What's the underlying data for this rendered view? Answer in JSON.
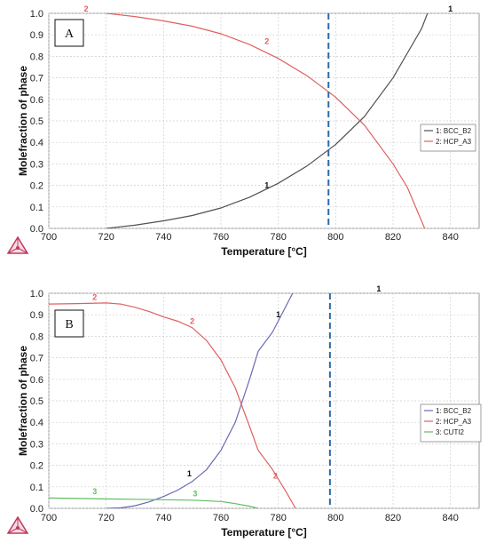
{
  "chart_data": [
    {
      "type": "line",
      "panel_label": "A",
      "xlabel": "Temperature [°C]",
      "ylabel": "Molefraction of phase",
      "xlim": [
        700,
        850
      ],
      "ylim": [
        0,
        1
      ],
      "x_ticks": [
        700,
        720,
        740,
        760,
        780,
        800,
        820,
        840
      ],
      "y_ticks": [
        0.0,
        0.1,
        0.2,
        0.3,
        0.4,
        0.5,
        0.6,
        0.7,
        0.8,
        0.9,
        1.0
      ],
      "grid": true,
      "legend_position": "right",
      "dashed_line_x": 797.5,
      "series": [
        {
          "name": "1: BCC_B2",
          "tag": "1",
          "color": "#505050",
          "points": [
            [
              720,
              0.0
            ],
            [
              730,
              0.015
            ],
            [
              740,
              0.035
            ],
            [
              750,
              0.06
            ],
            [
              760,
              0.095
            ],
            [
              770,
              0.145
            ],
            [
              780,
              0.21
            ],
            [
              790,
              0.29
            ],
            [
              800,
              0.39
            ],
            [
              810,
              0.52
            ],
            [
              820,
              0.7
            ],
            [
              830,
              0.93
            ],
            [
              832,
              1.0
            ]
          ],
          "label_points": [
            [
              776,
              0.18
            ],
            [
              840,
              1.0
            ]
          ]
        },
        {
          "name": "2: HCP_A3",
          "tag": "2",
          "color": "#e06060",
          "points": [
            [
              720,
              1.0
            ],
            [
              730,
              0.985
            ],
            [
              740,
              0.965
            ],
            [
              750,
              0.94
            ],
            [
              760,
              0.905
            ],
            [
              770,
              0.855
            ],
            [
              780,
              0.79
            ],
            [
              790,
              0.71
            ],
            [
              800,
              0.61
            ],
            [
              810,
              0.48
            ],
            [
              820,
              0.3
            ],
            [
              825,
              0.19
            ],
            [
              831,
              0.0
            ]
          ],
          "label_points": [
            [
              713,
              1.0
            ],
            [
              776,
              0.85
            ]
          ]
        }
      ]
    },
    {
      "type": "line",
      "panel_label": "B",
      "xlabel": "Temperature [°C]",
      "ylabel": "Molefraction of phase",
      "xlim": [
        700,
        850
      ],
      "ylim": [
        0,
        1
      ],
      "x_ticks": [
        700,
        720,
        740,
        760,
        780,
        800,
        820,
        840
      ],
      "y_ticks": [
        0.0,
        0.1,
        0.2,
        0.3,
        0.4,
        0.5,
        0.6,
        0.7,
        0.8,
        0.9,
        1.0
      ],
      "grid": true,
      "legend_position": "right",
      "dashed_line_x": 798,
      "series": [
        {
          "name": "1: BCC_B2",
          "tag": "1",
          "color": "#6a6ab4",
          "points": [
            [
              720,
              0.0
            ],
            [
              725,
              0.002
            ],
            [
              730,
              0.012
            ],
            [
              735,
              0.03
            ],
            [
              740,
              0.055
            ],
            [
              745,
              0.085
            ],
            [
              750,
              0.125
            ],
            [
              755,
              0.18
            ],
            [
              760,
              0.27
            ],
            [
              765,
              0.4
            ],
            [
              770,
              0.6
            ],
            [
              773,
              0.73
            ],
            [
              778,
              0.82
            ],
            [
              785,
              1.0
            ]
          ],
          "label_points": [
            [
              749,
              0.14
            ],
            [
              780,
              0.88
            ],
            [
              815,
              1.0
            ]
          ]
        },
        {
          "name": "2: HCP_A3",
          "tag": "2",
          "color": "#e06060",
          "points": [
            [
              700,
              0.95
            ],
            [
              710,
              0.952
            ],
            [
              720,
              0.955
            ],
            [
              725,
              0.95
            ],
            [
              730,
              0.935
            ],
            [
              735,
              0.915
            ],
            [
              740,
              0.89
            ],
            [
              745,
              0.87
            ],
            [
              750,
              0.84
            ],
            [
              755,
              0.78
            ],
            [
              760,
              0.69
            ],
            [
              765,
              0.56
            ],
            [
              770,
              0.38
            ],
            [
              773,
              0.27
            ],
            [
              778,
              0.18
            ],
            [
              783,
              0.07
            ],
            [
              786,
              0.0
            ]
          ],
          "label_points": [
            [
              716,
              0.96
            ],
            [
              750,
              0.85
            ],
            [
              779,
              0.13
            ]
          ]
        },
        {
          "name": "3: CUTI2",
          "tag": "3",
          "color": "#5fbf5f",
          "points": [
            [
              700,
              0.048
            ],
            [
              710,
              0.046
            ],
            [
              720,
              0.044
            ],
            [
              730,
              0.042
            ],
            [
              740,
              0.04
            ],
            [
              750,
              0.038
            ],
            [
              760,
              0.032
            ],
            [
              765,
              0.022
            ],
            [
              770,
              0.01
            ],
            [
              773,
              0.0
            ]
          ],
          "label_points": [
            [
              716,
              0.058
            ],
            [
              751,
              0.048
            ]
          ]
        }
      ]
    }
  ],
  "logo_icon": "thermo-calc-logo-icon"
}
